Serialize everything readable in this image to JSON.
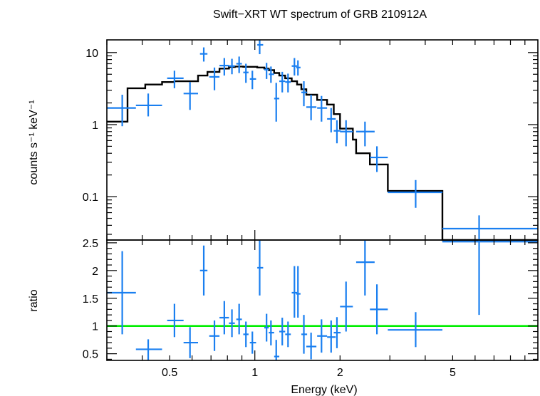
{
  "chart_data": [
    {
      "type": "scatter",
      "title": "Swift−XRT WT spectrum of GRB 210912A",
      "ylabel": "counts s⁻¹ keV⁻¹",
      "xscale": "log",
      "yscale": "log",
      "xlim": [
        0.3,
        10
      ],
      "ylim": [
        0.025,
        15
      ],
      "yticks": [
        {
          "value": 0.1,
          "label": "0.1"
        },
        {
          "value": 1,
          "label": "1"
        },
        {
          "value": 10,
          "label": "10"
        }
      ],
      "colors": {
        "data": "#1a7ff0",
        "model": "#000000"
      },
      "data_points": [
        {
          "x": 0.34,
          "xlo": 0.3,
          "xhi": 0.38,
          "y": 1.7,
          "ylo": 0.95,
          "yhi": 2.6
        },
        {
          "x": 0.42,
          "xlo": 0.38,
          "xhi": 0.47,
          "y": 1.85,
          "ylo": 1.3,
          "yhi": 2.7
        },
        {
          "x": 0.52,
          "xlo": 0.49,
          "xhi": 0.56,
          "y": 4.4,
          "ylo": 3.2,
          "yhi": 5.6
        },
        {
          "x": 0.59,
          "xlo": 0.56,
          "xhi": 0.63,
          "y": 2.7,
          "ylo": 1.6,
          "yhi": 3.9
        },
        {
          "x": 0.66,
          "xlo": 0.64,
          "xhi": 0.68,
          "y": 9.6,
          "ylo": 7.5,
          "yhi": 11.8
        },
        {
          "x": 0.72,
          "xlo": 0.69,
          "xhi": 0.75,
          "y": 4.6,
          "ylo": 3.0,
          "yhi": 6.2
        },
        {
          "x": 0.78,
          "xlo": 0.75,
          "xhi": 0.81,
          "y": 6.6,
          "ylo": 4.8,
          "yhi": 8.4
        },
        {
          "x": 0.83,
          "xlo": 0.81,
          "xhi": 0.85,
          "y": 6.5,
          "ylo": 5.0,
          "yhi": 8.2
        },
        {
          "x": 0.88,
          "xlo": 0.86,
          "xhi": 0.9,
          "y": 7.0,
          "ylo": 5.2,
          "yhi": 8.8
        },
        {
          "x": 0.93,
          "xlo": 0.91,
          "xhi": 0.95,
          "y": 5.3,
          "ylo": 3.8,
          "yhi": 7.0
        },
        {
          "x": 0.98,
          "xlo": 0.96,
          "xhi": 1.01,
          "y": 4.3,
          "ylo": 3.1,
          "yhi": 5.6
        },
        {
          "x": 1.04,
          "xlo": 1.02,
          "xhi": 1.07,
          "y": 12.8,
          "ylo": 9.5,
          "yhi": 15.0
        },
        {
          "x": 1.1,
          "xlo": 1.08,
          "xhi": 1.12,
          "y": 5.8,
          "ylo": 4.3,
          "yhi": 7.2
        },
        {
          "x": 1.14,
          "xlo": 1.12,
          "xhi": 1.17,
          "y": 5.0,
          "ylo": 3.8,
          "yhi": 6.4
        },
        {
          "x": 1.19,
          "xlo": 1.17,
          "xhi": 1.22,
          "y": 2.3,
          "ylo": 1.1,
          "yhi": 3.8
        },
        {
          "x": 1.25,
          "xlo": 1.22,
          "xhi": 1.28,
          "y": 4.0,
          "ylo": 2.8,
          "yhi": 5.4
        },
        {
          "x": 1.31,
          "xlo": 1.28,
          "xhi": 1.34,
          "y": 3.9,
          "ylo": 2.8,
          "yhi": 5.1
        },
        {
          "x": 1.38,
          "xlo": 1.35,
          "xhi": 1.41,
          "y": 6.5,
          "ylo": 4.8,
          "yhi": 8.4
        },
        {
          "x": 1.42,
          "xlo": 1.4,
          "xhi": 1.45,
          "y": 6.2,
          "ylo": 4.8,
          "yhi": 7.8
        },
        {
          "x": 1.49,
          "xlo": 1.46,
          "xhi": 1.53,
          "y": 2.8,
          "ylo": 1.8,
          "yhi": 4.0
        },
        {
          "x": 1.58,
          "xlo": 1.52,
          "xhi": 1.65,
          "y": 1.75,
          "ylo": 1.15,
          "yhi": 2.6
        },
        {
          "x": 1.72,
          "xlo": 1.66,
          "xhi": 1.8,
          "y": 1.7,
          "ylo": 1.1,
          "yhi": 2.5
        },
        {
          "x": 1.86,
          "xlo": 1.8,
          "xhi": 1.93,
          "y": 1.2,
          "ylo": 0.78,
          "yhi": 1.7
        },
        {
          "x": 1.95,
          "xlo": 1.9,
          "xhi": 2.01,
          "y": 0.82,
          "ylo": 0.55,
          "yhi": 1.15
        },
        {
          "x": 2.1,
          "xlo": 2.0,
          "xhi": 2.22,
          "y": 0.8,
          "ylo": 0.5,
          "yhi": 1.15
        },
        {
          "x": 2.45,
          "xlo": 2.28,
          "xhi": 2.65,
          "y": 0.8,
          "ylo": 0.5,
          "yhi": 1.1
        },
        {
          "x": 2.7,
          "xlo": 2.55,
          "xhi": 2.95,
          "y": 0.35,
          "ylo": 0.22,
          "yhi": 0.5
        },
        {
          "x": 3.7,
          "xlo": 2.95,
          "xhi": 4.6,
          "y": 0.115,
          "ylo": 0.07,
          "yhi": 0.17
        },
        {
          "x": 6.2,
          "xlo": 4.6,
          "xhi": 10.0,
          "y": 0.036,
          "ylo": 0.021,
          "yhi": 0.055
        }
      ],
      "model_steps": [
        {
          "x0": 0.3,
          "x1": 0.355,
          "y": 1.1
        },
        {
          "x0": 0.355,
          "x1": 0.41,
          "y": 3.2
        },
        {
          "x0": 0.41,
          "x1": 0.47,
          "y": 3.6
        },
        {
          "x0": 0.47,
          "x1": 0.52,
          "y": 3.9
        },
        {
          "x0": 0.52,
          "x1": 0.63,
          "y": 4.0
        },
        {
          "x0": 0.63,
          "x1": 0.68,
          "y": 4.8
        },
        {
          "x0": 0.68,
          "x1": 0.75,
          "y": 5.4
        },
        {
          "x0": 0.75,
          "x1": 0.81,
          "y": 6.0
        },
        {
          "x0": 0.81,
          "x1": 0.85,
          "y": 6.3
        },
        {
          "x0": 0.85,
          "x1": 0.91,
          "y": 6.4
        },
        {
          "x0": 0.91,
          "x1": 1.02,
          "y": 6.35
        },
        {
          "x0": 1.02,
          "x1": 1.08,
          "y": 6.2
        },
        {
          "x0": 1.08,
          "x1": 1.12,
          "y": 6.0
        },
        {
          "x0": 1.12,
          "x1": 1.17,
          "y": 5.7
        },
        {
          "x0": 1.17,
          "x1": 1.22,
          "y": 5.2
        },
        {
          "x0": 1.22,
          "x1": 1.28,
          "y": 4.8
        },
        {
          "x0": 1.28,
          "x1": 1.35,
          "y": 4.4
        },
        {
          "x0": 1.35,
          "x1": 1.41,
          "y": 4.0
        },
        {
          "x0": 1.41,
          "x1": 1.46,
          "y": 3.6
        },
        {
          "x0": 1.46,
          "x1": 1.52,
          "y": 3.1
        },
        {
          "x0": 1.52,
          "x1": 1.66,
          "y": 2.6
        },
        {
          "x0": 1.66,
          "x1": 1.8,
          "y": 2.2
        },
        {
          "x0": 1.8,
          "x1": 1.9,
          "y": 1.9
        },
        {
          "x0": 1.9,
          "x1": 2.0,
          "y": 1.4
        },
        {
          "x0": 2.0,
          "x1": 2.22,
          "y": 0.88
        },
        {
          "x0": 2.22,
          "x1": 2.28,
          "y": 0.62
        },
        {
          "x0": 2.28,
          "x1": 2.55,
          "y": 0.4
        },
        {
          "x0": 2.55,
          "x1": 2.95,
          "y": 0.28
        },
        {
          "x0": 2.95,
          "x1": 4.6,
          "y": 0.12
        },
        {
          "x0": 4.6,
          "x1": 10.0,
          "y": 0.02
        }
      ]
    },
    {
      "type": "scatter",
      "xlabel": "Energy (keV)",
      "ylabel": "ratio",
      "xscale": "log",
      "xlim": [
        0.3,
        10
      ],
      "ylim": [
        0.38,
        2.55
      ],
      "xticks": [
        {
          "value": 0.5,
          "label": "0.5"
        },
        {
          "value": 1,
          "label": "1"
        },
        {
          "value": 2,
          "label": "2"
        },
        {
          "value": 5,
          "label": "5"
        }
      ],
      "yticks": [
        {
          "value": 0.5,
          "label": "0.5"
        },
        {
          "value": 1,
          "label": "1"
        },
        {
          "value": 1.5,
          "label": "1.5"
        },
        {
          "value": 2,
          "label": "2"
        },
        {
          "value": 2.5,
          "label": "2.5"
        }
      ],
      "reference_line": 1,
      "colors": {
        "data": "#1a7ff0",
        "reference": "#00ee00"
      },
      "data_points": [
        {
          "x": 0.34,
          "xlo": 0.3,
          "xhi": 0.38,
          "y": 1.6,
          "ylo": 0.85,
          "yhi": 2.35
        },
        {
          "x": 0.42,
          "xlo": 0.38,
          "xhi": 0.47,
          "y": 0.58,
          "ylo": 0.38,
          "yhi": 0.76
        },
        {
          "x": 0.52,
          "xlo": 0.49,
          "xhi": 0.56,
          "y": 1.1,
          "ylo": 0.8,
          "yhi": 1.4
        },
        {
          "x": 0.59,
          "xlo": 0.56,
          "xhi": 0.63,
          "y": 0.7,
          "ylo": 0.42,
          "yhi": 0.98
        },
        {
          "x": 0.66,
          "xlo": 0.64,
          "xhi": 0.68,
          "y": 2.0,
          "ylo": 1.55,
          "yhi": 2.45
        },
        {
          "x": 0.72,
          "xlo": 0.69,
          "xhi": 0.75,
          "y": 0.82,
          "ylo": 0.55,
          "yhi": 1.1
        },
        {
          "x": 0.78,
          "xlo": 0.75,
          "xhi": 0.81,
          "y": 1.15,
          "ylo": 0.85,
          "yhi": 1.45
        },
        {
          "x": 0.83,
          "xlo": 0.81,
          "xhi": 0.85,
          "y": 1.05,
          "ylo": 0.8,
          "yhi": 1.3
        },
        {
          "x": 0.88,
          "xlo": 0.86,
          "xhi": 0.9,
          "y": 1.12,
          "ylo": 0.85,
          "yhi": 1.4
        },
        {
          "x": 0.93,
          "xlo": 0.91,
          "xhi": 0.95,
          "y": 0.85,
          "ylo": 0.62,
          "yhi": 1.08
        },
        {
          "x": 0.98,
          "xlo": 0.96,
          "xhi": 1.01,
          "y": 0.7,
          "ylo": 0.5,
          "yhi": 0.9
        },
        {
          "x": 1.04,
          "xlo": 1.02,
          "xhi": 1.07,
          "y": 2.05,
          "ylo": 1.55,
          "yhi": 2.55
        },
        {
          "x": 1.1,
          "xlo": 1.08,
          "xhi": 1.12,
          "y": 0.97,
          "ylo": 0.72,
          "yhi": 1.22
        },
        {
          "x": 1.14,
          "xlo": 1.12,
          "xhi": 1.17,
          "y": 0.88,
          "ylo": 0.65,
          "yhi": 1.1
        },
        {
          "x": 1.19,
          "xlo": 1.17,
          "xhi": 1.22,
          "y": 0.45,
          "ylo": 0.38,
          "yhi": 0.75
        },
        {
          "x": 1.25,
          "xlo": 1.22,
          "xhi": 1.28,
          "y": 0.9,
          "ylo": 0.65,
          "yhi": 1.15
        },
        {
          "x": 1.31,
          "xlo": 1.28,
          "xhi": 1.34,
          "y": 0.85,
          "ylo": 0.62,
          "yhi": 1.08
        },
        {
          "x": 1.38,
          "xlo": 1.35,
          "xhi": 1.41,
          "y": 1.6,
          "ylo": 1.15,
          "yhi": 2.08
        },
        {
          "x": 1.42,
          "xlo": 1.4,
          "xhi": 1.45,
          "y": 1.58,
          "ylo": 1.15,
          "yhi": 2.08
        },
        {
          "x": 1.49,
          "xlo": 1.46,
          "xhi": 1.53,
          "y": 0.85,
          "ylo": 0.5,
          "yhi": 1.2
        },
        {
          "x": 1.58,
          "xlo": 1.52,
          "xhi": 1.65,
          "y": 0.63,
          "ylo": 0.4,
          "yhi": 0.88
        },
        {
          "x": 1.72,
          "xlo": 1.66,
          "xhi": 1.8,
          "y": 0.82,
          "ylo": 0.52,
          "yhi": 1.12
        },
        {
          "x": 1.86,
          "xlo": 1.8,
          "xhi": 1.93,
          "y": 0.8,
          "ylo": 0.52,
          "yhi": 1.1
        },
        {
          "x": 1.95,
          "xlo": 1.9,
          "xhi": 2.01,
          "y": 0.88,
          "ylo": 0.6,
          "yhi": 1.16
        },
        {
          "x": 2.1,
          "xlo": 2.0,
          "xhi": 2.22,
          "y": 1.35,
          "ylo": 0.9,
          "yhi": 1.8
        },
        {
          "x": 2.45,
          "xlo": 2.28,
          "xhi": 2.65,
          "y": 2.15,
          "ylo": 1.55,
          "yhi": 2.55
        },
        {
          "x": 2.7,
          "xlo": 2.55,
          "xhi": 2.95,
          "y": 1.3,
          "ylo": 0.85,
          "yhi": 1.75
        },
        {
          "x": 3.7,
          "xlo": 2.95,
          "xhi": 4.6,
          "y": 0.93,
          "ylo": 0.62,
          "yhi": 1.25
        },
        {
          "x": 6.2,
          "xlo": 4.6,
          "xhi": 10.0,
          "y": 2.52,
          "ylo": 1.2,
          "yhi": 2.55
        }
      ]
    }
  ]
}
